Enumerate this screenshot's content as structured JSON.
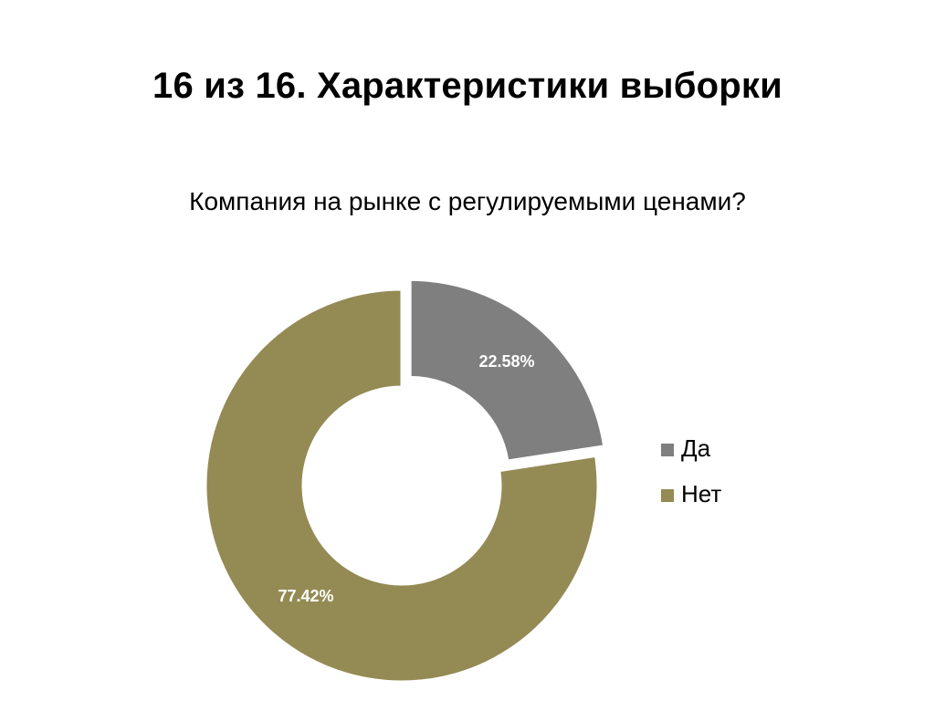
{
  "slide": {
    "title": "16 из 16. Характеристики выборки"
  },
  "chart_data": {
    "type": "pie",
    "variant": "donut",
    "title": "Компания на рынке с регулируемыми ценами?",
    "categories": [
      "Да",
      "Нет"
    ],
    "values": [
      22.58,
      77.42
    ],
    "data_labels": [
      "22.58%",
      "77.42%"
    ],
    "colors": [
      "#7f7f7f",
      "#948a54"
    ],
    "legend": {
      "placement": "right"
    }
  }
}
